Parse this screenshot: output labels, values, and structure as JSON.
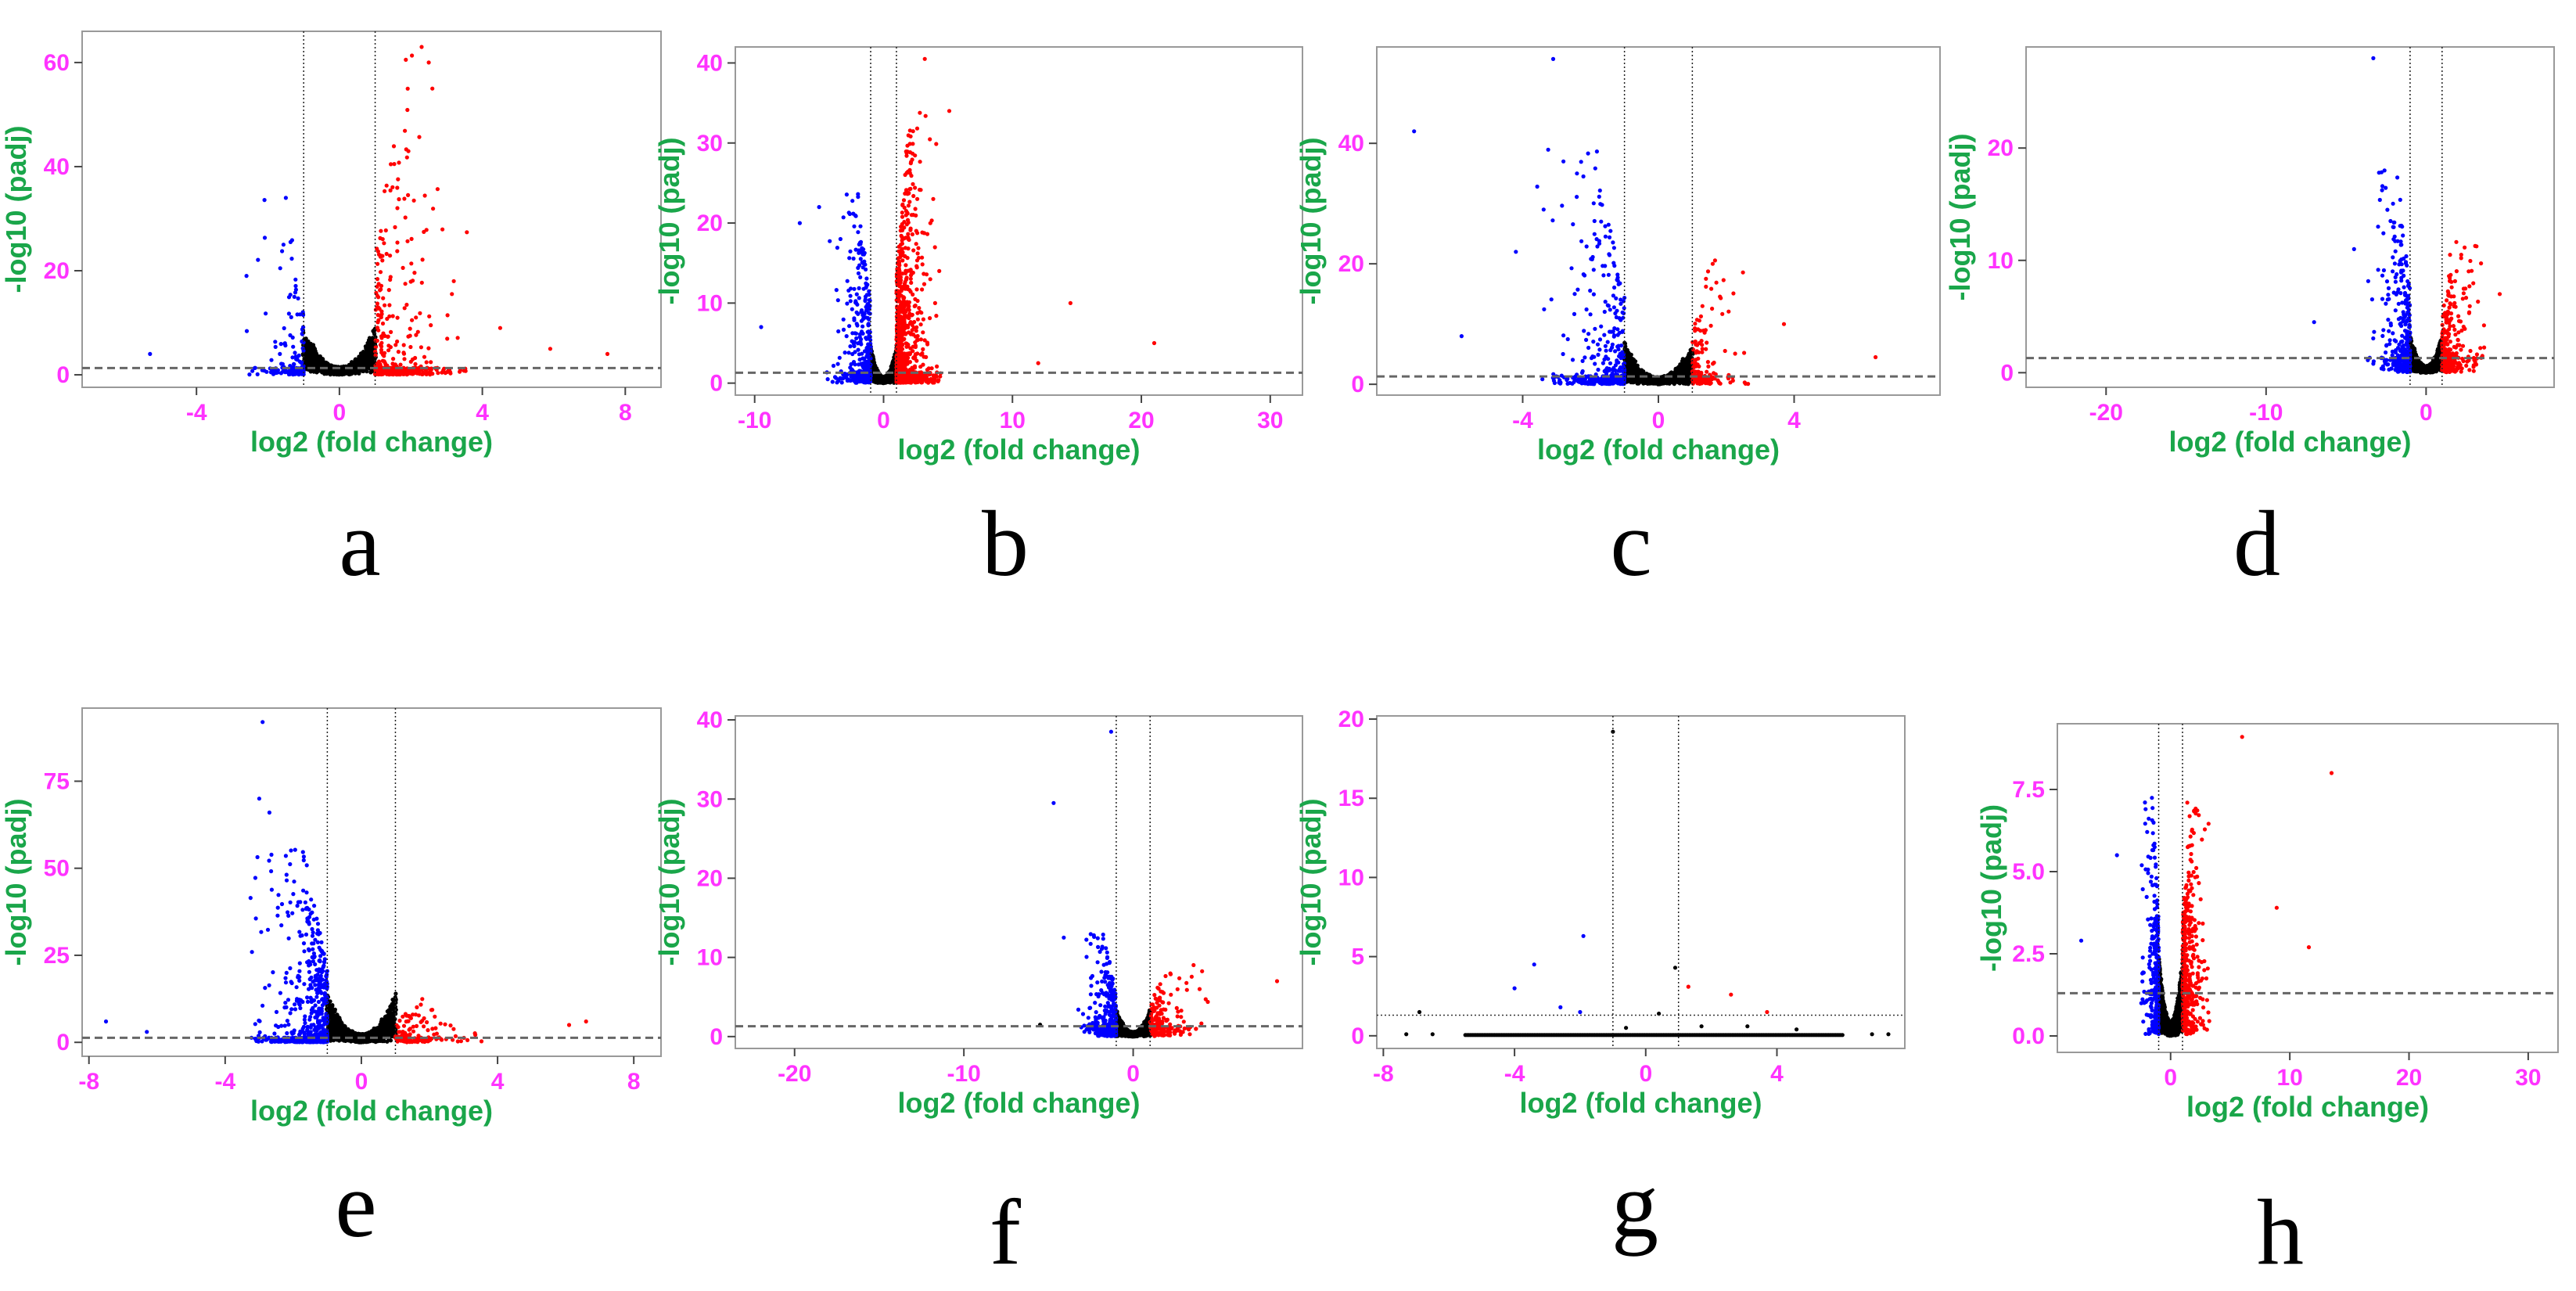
{
  "colors": {
    "tick": "#ff33ff",
    "axis_title": "#1aa64a",
    "up": "#ff0000",
    "down": "#0000ff",
    "ns": "#000000",
    "threshold": "#666666",
    "frame": "#999999"
  },
  "chart_data": [
    {
      "type": "scatter",
      "panel": "a",
      "xlabel": "log2 (fold change)",
      "ylabel": "-log10 (padj)",
      "xlim": [
        -7.2,
        9.0
      ],
      "ylim": [
        -2.4,
        66
      ],
      "xticks": [
        -4,
        0,
        4,
        8
      ],
      "xtick_labels": [
        "-4",
        "0",
        "4",
        "8"
      ],
      "yticks": [
        0,
        20,
        40,
        60
      ],
      "ytick_labels": [
        "0",
        "20",
        "40",
        "60"
      ],
      "fc_threshold": 1,
      "padj_line": 1.3,
      "down_count": 160,
      "up_count": 480,
      "ns_count": 900,
      "down_spread": 0.9,
      "up_spread": 1.4,
      "down_ymax": 33,
      "up_ymax": 62,
      "ns_ymax": 8,
      "tail": 0.6,
      "outliers": [
        {
          "x": 2.3,
          "y": 63,
          "cls": "up"
        },
        {
          "x": 2.5,
          "y": 60,
          "cls": "up"
        },
        {
          "x": 2.6,
          "y": 55,
          "cls": "up"
        },
        {
          "x": -1.5,
          "y": 34,
          "cls": "down"
        },
        {
          "x": -2.6,
          "y": 19,
          "cls": "down"
        },
        {
          "x": 5.9,
          "y": 5,
          "cls": "up"
        },
        {
          "x": 7.5,
          "y": 4,
          "cls": "up"
        },
        {
          "x": -5.3,
          "y": 4,
          "cls": "down"
        },
        {
          "x": 3.2,
          "y": 18,
          "cls": "up"
        },
        {
          "x": 4.5,
          "y": 9,
          "cls": "up"
        }
      ]
    },
    {
      "type": "scatter",
      "panel": "b",
      "xlabel": "log2 (fold change)",
      "ylabel": "-log10 (padj)",
      "xlim": [
        -11.5,
        32.5
      ],
      "ylim": [
        -1.5,
        42
      ],
      "xticks": [
        -10,
        0,
        10,
        20,
        30
      ],
      "xtick_labels": [
        "-10",
        "0",
        "10",
        "20",
        "30"
      ],
      "yticks": [
        0,
        10,
        20,
        30,
        40
      ],
      "ytick_labels": [
        "0",
        "10",
        "20",
        "30",
        "40"
      ],
      "fc_threshold": 1,
      "padj_line": 1.3,
      "down_count": 420,
      "up_count": 1100,
      "ns_count": 1200,
      "down_spread": 1.8,
      "up_spread": 1.8,
      "down_ymax": 24,
      "up_ymax": 34,
      "ns_ymax": 4,
      "tail": 0.45,
      "outliers": [
        {
          "x": 3.2,
          "y": 40.5,
          "cls": "up"
        },
        {
          "x": 5.1,
          "y": 34,
          "cls": "up"
        },
        {
          "x": -6.5,
          "y": 20,
          "cls": "down"
        },
        {
          "x": -9.5,
          "y": 7,
          "cls": "down"
        },
        {
          "x": 14.5,
          "y": 10,
          "cls": "up"
        },
        {
          "x": 21,
          "y": 5,
          "cls": "up"
        },
        {
          "x": -5,
          "y": 22,
          "cls": "down"
        },
        {
          "x": 12,
          "y": 2.5,
          "cls": "up"
        }
      ]
    },
    {
      "type": "scatter",
      "panel": "c",
      "xlabel": "log2 (fold change)",
      "ylabel": "-log10 (padj)",
      "xlim": [
        -8.3,
        8.3
      ],
      "ylim": [
        -1.8,
        56
      ],
      "xticks": [
        -4,
        0,
        4
      ],
      "xtick_labels": [
        "-4",
        "0",
        "4"
      ],
      "yticks": [
        0,
        20,
        40
      ],
      "ytick_labels": [
        "0",
        "20",
        "40"
      ],
      "fc_threshold": 1,
      "padj_line": 1.3,
      "down_count": 420,
      "up_count": 160,
      "ns_count": 1000,
      "down_spread": 1.4,
      "up_spread": 0.9,
      "down_ymax": 38,
      "up_ymax": 20,
      "ns_ymax": 6,
      "tail": 0.5,
      "outliers": [
        {
          "x": -3.1,
          "y": 54,
          "cls": "down"
        },
        {
          "x": -7.2,
          "y": 42,
          "cls": "down"
        },
        {
          "x": -2.8,
          "y": 37,
          "cls": "down"
        },
        {
          "x": -2.4,
          "y": 35,
          "cls": "down"
        },
        {
          "x": -5.8,
          "y": 8,
          "cls": "down"
        },
        {
          "x": -4.2,
          "y": 22,
          "cls": "down"
        },
        {
          "x": 6.4,
          "y": 4.5,
          "cls": "up"
        },
        {
          "x": 1.6,
          "y": 20,
          "cls": "up"
        },
        {
          "x": 3.7,
          "y": 10,
          "cls": "up"
        }
      ]
    },
    {
      "type": "scatter",
      "panel": "d",
      "xlabel": "log2 (fold change)",
      "ylabel": "-log10 (padj)",
      "xlim": [
        -25,
        8
      ],
      "ylim": [
        -1.3,
        29
      ],
      "xticks": [
        -20,
        -10,
        0
      ],
      "xtick_labels": [
        "-20",
        "-10",
        "0"
      ],
      "yticks": [
        0,
        10,
        20
      ],
      "ytick_labels": [
        "0",
        "10",
        "20"
      ],
      "fc_threshold": 1,
      "padj_line": 1.3,
      "down_count": 360,
      "up_count": 320,
      "ns_count": 1100,
      "down_spread": 1.4,
      "up_spread": 1.5,
      "down_ymax": 17,
      "up_ymax": 11,
      "ns_ymax": 3,
      "tail": 0.4,
      "outliers": [
        {
          "x": -3.3,
          "y": 28,
          "cls": "down"
        },
        {
          "x": -2.6,
          "y": 18,
          "cls": "down"
        },
        {
          "x": -3.0,
          "y": 13,
          "cls": "down"
        },
        {
          "x": -7.0,
          "y": 4.5,
          "cls": "down"
        },
        {
          "x": 4.6,
          "y": 7,
          "cls": "up"
        },
        {
          "x": 1.5,
          "y": 10.5,
          "cls": "up"
        },
        {
          "x": -4.5,
          "y": 11,
          "cls": "down"
        }
      ]
    },
    {
      "type": "scatter",
      "panel": "e",
      "xlabel": "log2 (fold change)",
      "ylabel": "-log10 (padj)",
      "xlim": [
        -8.2,
        8.8
      ],
      "ylim": [
        -4,
        96
      ],
      "xticks": [
        -8,
        -4,
        0,
        4,
        8
      ],
      "xtick_labels": [
        "-8",
        "-4",
        "0",
        "4",
        "8"
      ],
      "yticks": [
        0,
        25,
        50,
        75
      ],
      "ytick_labels": [
        "0",
        "25",
        "50",
        "75"
      ],
      "fc_threshold": 1,
      "padj_line": 1.3,
      "down_count": 900,
      "up_count": 160,
      "ns_count": 1300,
      "down_spread": 1.2,
      "up_spread": 1.4,
      "down_ymax": 55,
      "up_ymax": 12,
      "ns_ymax": 12,
      "tail": 0.55,
      "outliers": [
        {
          "x": -2.9,
          "y": 92,
          "cls": "down"
        },
        {
          "x": -3.0,
          "y": 70,
          "cls": "down"
        },
        {
          "x": -2.7,
          "y": 66,
          "cls": "down"
        },
        {
          "x": -7.5,
          "y": 6,
          "cls": "down"
        },
        {
          "x": 6.6,
          "y": 6,
          "cls": "up"
        },
        {
          "x": 6.1,
          "y": 5,
          "cls": "up"
        },
        {
          "x": -6.3,
          "y": 3,
          "cls": "down"
        }
      ]
    },
    {
      "type": "scatter",
      "panel": "f",
      "xlabel": "log2 (fold change)",
      "ylabel": "-log10 (padj)",
      "xlim": [
        -23.5,
        10
      ],
      "ylim": [
        -1.5,
        40.5
      ],
      "xticks": [
        -20,
        -10,
        0
      ],
      "xtick_labels": [
        "-20",
        "-10",
        "0"
      ],
      "yticks": [
        0,
        10,
        20,
        30,
        40
      ],
      "ytick_labels": [
        "0",
        "10",
        "20",
        "30",
        "40"
      ],
      "fc_threshold": 1,
      "padj_line": 1.3,
      "down_count": 360,
      "up_count": 200,
      "ns_count": 1100,
      "down_spread": 1.3,
      "up_spread": 1.8,
      "down_ymax": 12,
      "up_ymax": 8,
      "ns_ymax": 3,
      "tail": 0.45,
      "outliers": [
        {
          "x": -1.3,
          "y": 38.5,
          "cls": "down"
        },
        {
          "x": -4.7,
          "y": 29.5,
          "cls": "down"
        },
        {
          "x": -4.1,
          "y": 12.5,
          "cls": "down"
        },
        {
          "x": 8.5,
          "y": 7,
          "cls": "up"
        },
        {
          "x": -5.5,
          "y": 1.5,
          "cls": "ns"
        }
      ]
    },
    {
      "type": "scatter",
      "panel": "g",
      "xlabel": "log2 (fold change)",
      "ylabel": "-log10 (padj)",
      "xlim": [
        -8.2,
        7.9
      ],
      "ylim": [
        -0.8,
        20.2
      ],
      "xticks": [
        -8,
        -4,
        0,
        4
      ],
      "xtick_labels": [
        "-8",
        "-4",
        "0",
        "4"
      ],
      "yticks": [
        0,
        5,
        10,
        15,
        20
      ],
      "ytick_labels": [
        "0",
        "5",
        "10",
        "15",
        "20"
      ],
      "fc_threshold": 1,
      "padj_line": 1.3,
      "baseline": true,
      "baseline_range": [
        -5.5,
        6
      ],
      "down_count": 0,
      "up_count": 0,
      "ns_count": 0,
      "outliers": [
        {
          "x": -1.0,
          "y": 19.2,
          "cls": "ns"
        },
        {
          "x": -3.4,
          "y": 4.5,
          "cls": "down"
        },
        {
          "x": -1.9,
          "y": 6.3,
          "cls": "down"
        },
        {
          "x": -4.0,
          "y": 3.0,
          "cls": "down"
        },
        {
          "x": -2.0,
          "y": 1.5,
          "cls": "down"
        },
        {
          "x": -2.6,
          "y": 1.8,
          "cls": "down"
        },
        {
          "x": 0.9,
          "y": 4.3,
          "cls": "ns"
        },
        {
          "x": 1.3,
          "y": 3.1,
          "cls": "up"
        },
        {
          "x": 2.6,
          "y": 2.6,
          "cls": "up"
        },
        {
          "x": 3.7,
          "y": 1.5,
          "cls": "up"
        },
        {
          "x": -6.9,
          "y": 1.5,
          "cls": "ns"
        },
        {
          "x": 0.4,
          "y": 1.4,
          "cls": "ns"
        },
        {
          "x": 1.7,
          "y": 0.6,
          "cls": "ns"
        },
        {
          "x": -7.3,
          "y": 0.1,
          "cls": "ns"
        },
        {
          "x": -6.5,
          "y": 0.1,
          "cls": "ns"
        },
        {
          "x": 6.9,
          "y": 0.1,
          "cls": "ns"
        },
        {
          "x": 7.4,
          "y": 0.1,
          "cls": "ns"
        },
        {
          "x": 4.6,
          "y": 0.4,
          "cls": "ns"
        },
        {
          "x": 3.1,
          "y": 0.6,
          "cls": "ns"
        },
        {
          "x": -0.6,
          "y": 0.5,
          "cls": "ns"
        }
      ]
    },
    {
      "type": "scatter",
      "panel": "h",
      "xlabel": "log2 (fold change)",
      "ylabel": "-log10 (padj)",
      "xlim": [
        -9.5,
        32.5
      ],
      "ylim": [
        -0.5,
        9.5
      ],
      "xticks": [
        0,
        10,
        20,
        30
      ],
      "xtick_labels": [
        "0",
        "10",
        "20",
        "30"
      ],
      "yticks": [
        0,
        2.5,
        5,
        7.5
      ],
      "ytick_labels": [
        "0.0",
        "2.5",
        "5.0",
        "7.5"
      ],
      "fc_threshold": 1,
      "padj_line": 1.3,
      "down_count": 320,
      "up_count": 420,
      "ns_count": 1400,
      "down_spread": 0.8,
      "up_spread": 1.2,
      "down_ymax": 6,
      "up_ymax": 6,
      "ns_ymax": 2.2,
      "tail": 0.35,
      "outliers": [
        {
          "x": 13.5,
          "y": 8.0,
          "cls": "up"
        },
        {
          "x": 6.0,
          "y": 9.1,
          "cls": "up"
        },
        {
          "x": -4.5,
          "y": 5.5,
          "cls": "down"
        },
        {
          "x": -7.5,
          "y": 2.9,
          "cls": "down"
        },
        {
          "x": 11.6,
          "y": 2.7,
          "cls": "up"
        },
        {
          "x": 8.9,
          "y": 3.9,
          "cls": "up"
        },
        {
          "x": -2.1,
          "y": 6.9,
          "cls": "down"
        },
        {
          "x": 1.4,
          "y": 7.1,
          "cls": "up"
        }
      ]
    }
  ]
}
